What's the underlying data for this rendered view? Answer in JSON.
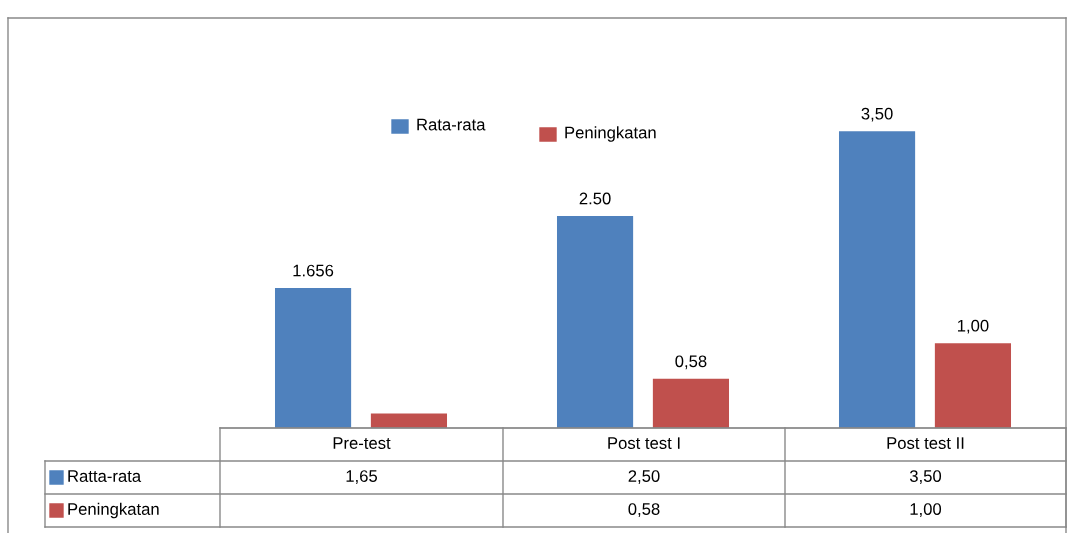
{
  "chart_data": {
    "type": "bar",
    "categories": [
      "Pre-test",
      "Post test I",
      "Post test II"
    ],
    "series": [
      {
        "name": "Rata-rata",
        "color": "#4f81bd",
        "values": [
          1.65,
          2.5,
          3.5
        ],
        "value_labels": [
          "1,65",
          "2,50",
          "3,50"
        ]
      },
      {
        "name": "Peningkatan",
        "color": "#c0504d",
        "values": [
          0.17,
          0.58,
          1.0
        ],
        "value_labels": [
          null,
          "0,58",
          "1,00"
        ]
      }
    ],
    "annotations": [
      "1.656",
      "2.50",
      "3,50",
      "0,58",
      "1,00",
      "Ratta-rata",
      "Peningkatan"
    ],
    "legend": "top"
  }
}
